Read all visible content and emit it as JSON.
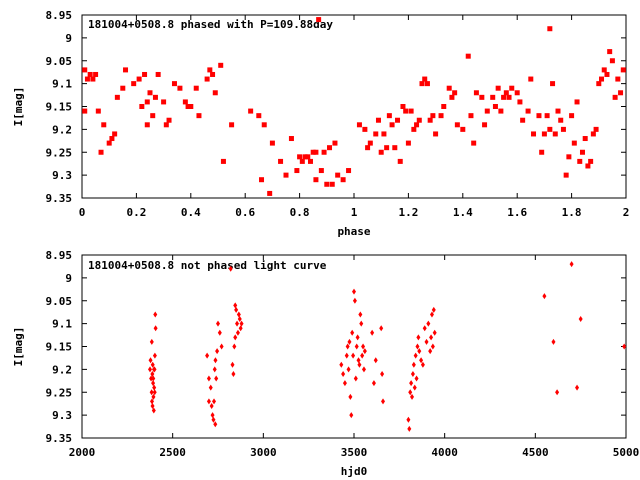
{
  "chart_data": [
    {
      "type": "scatter",
      "title": "181004+0508.8 phased with P=109.88day",
      "xlabel": "phase",
      "ylabel": "I[mag]",
      "xlim": [
        0,
        2
      ],
      "ylim": [
        9.35,
        8.95
      ],
      "y_inverted": true,
      "x_ticks": [
        "0",
        "0.2",
        "0.4",
        "0.6",
        "0.8",
        "1",
        "1.2",
        "1.4",
        "1.6",
        "1.8",
        "2"
      ],
      "y_ticks": [
        "8.95",
        "9",
        "9.05",
        "9.1",
        "9.15",
        "9.2",
        "9.25",
        "9.3",
        "9.35"
      ],
      "marker_color": "#ff0000",
      "series": [
        {
          "values": [
            [
              0.01,
              9.07
            ],
            [
              0.02,
              9.09
            ],
            [
              0.03,
              9.08
            ],
            [
              0.01,
              9.16
            ],
            [
              0.04,
              9.09
            ],
            [
              0.05,
              9.08
            ],
            [
              0.06,
              9.16
            ],
            [
              0.07,
              9.25
            ],
            [
              0.08,
              9.19
            ],
            [
              0.1,
              9.23
            ],
            [
              0.11,
              9.22
            ],
            [
              0.12,
              9.21
            ],
            [
              0.13,
              9.13
            ],
            [
              0.15,
              9.11
            ],
            [
              0.16,
              9.07
            ],
            [
              0.19,
              9.1
            ],
            [
              0.21,
              9.09
            ],
            [
              0.22,
              9.15
            ],
            [
              0.23,
              9.08
            ],
            [
              0.24,
              9.14
            ],
            [
              0.24,
              9.19
            ],
            [
              0.25,
              9.12
            ],
            [
              0.26,
              9.17
            ],
            [
              0.27,
              9.13
            ],
            [
              0.28,
              9.08
            ],
            [
              0.3,
              9.14
            ],
            [
              0.31,
              9.19
            ],
            [
              0.32,
              9.18
            ],
            [
              0.34,
              9.1
            ],
            [
              0.36,
              9.11
            ],
            [
              0.38,
              9.14
            ],
            [
              0.39,
              9.15
            ],
            [
              0.4,
              9.15
            ],
            [
              0.42,
              9.11
            ],
            [
              0.43,
              9.17
            ],
            [
              0.46,
              9.09
            ],
            [
              0.47,
              9.07
            ],
            [
              0.48,
              9.08
            ],
            [
              0.49,
              9.12
            ],
            [
              0.51,
              9.06
            ],
            [
              0.52,
              9.27
            ],
            [
              0.55,
              9.19
            ],
            [
              0.62,
              9.16
            ],
            [
              0.65,
              9.17
            ],
            [
              0.66,
              9.31
            ],
            [
              0.67,
              9.19
            ],
            [
              0.69,
              9.34
            ],
            [
              0.7,
              9.23
            ],
            [
              0.73,
              9.27
            ],
            [
              0.75,
              9.3
            ],
            [
              0.77,
              9.22
            ],
            [
              0.79,
              9.29
            ],
            [
              0.8,
              9.26
            ],
            [
              0.81,
              9.27
            ],
            [
              0.82,
              9.26
            ],
            [
              0.83,
              9.26
            ],
            [
              0.84,
              9.27
            ],
            [
              0.85,
              9.25
            ],
            [
              0.86,
              9.25
            ],
            [
              0.86,
              9.31
            ],
            [
              0.87,
              8.96
            ],
            [
              0.88,
              9.29
            ],
            [
              0.89,
              9.25
            ],
            [
              0.9,
              9.32
            ],
            [
              0.91,
              9.24
            ],
            [
              0.92,
              9.32
            ],
            [
              0.93,
              9.23
            ],
            [
              0.94,
              9.3
            ],
            [
              0.96,
              9.31
            ],
            [
              0.98,
              9.29
            ],
            [
              1.02,
              9.19
            ],
            [
              1.04,
              9.2
            ],
            [
              1.05,
              9.24
            ],
            [
              1.06,
              9.23
            ],
            [
              1.08,
              9.21
            ],
            [
              1.09,
              9.18
            ],
            [
              1.1,
              9.25
            ],
            [
              1.11,
              9.21
            ],
            [
              1.12,
              9.24
            ],
            [
              1.13,
              9.17
            ],
            [
              1.14,
              9.19
            ],
            [
              1.15,
              9.24
            ],
            [
              1.16,
              9.18
            ],
            [
              1.17,
              9.27
            ],
            [
              1.18,
              9.15
            ],
            [
              1.19,
              9.16
            ],
            [
              1.2,
              9.23
            ],
            [
              1.21,
              9.16
            ],
            [
              1.22,
              9.2
            ],
            [
              1.23,
              9.19
            ],
            [
              1.24,
              9.18
            ],
            [
              1.25,
              9.1
            ],
            [
              1.26,
              9.09
            ],
            [
              1.27,
              9.1
            ],
            [
              1.28,
              9.18
            ],
            [
              1.29,
              9.17
            ],
            [
              1.3,
              9.21
            ],
            [
              1.32,
              9.17
            ],
            [
              1.33,
              9.15
            ],
            [
              1.35,
              9.11
            ],
            [
              1.36,
              9.13
            ],
            [
              1.37,
              9.12
            ],
            [
              1.38,
              9.19
            ],
            [
              1.4,
              9.2
            ],
            [
              1.42,
              9.04
            ],
            [
              1.43,
              9.17
            ],
            [
              1.44,
              9.23
            ],
            [
              1.45,
              9.12
            ],
            [
              1.47,
              9.13
            ],
            [
              1.48,
              9.19
            ],
            [
              1.49,
              9.16
            ],
            [
              1.51,
              9.13
            ],
            [
              1.52,
              9.15
            ],
            [
              1.53,
              9.11
            ],
            [
              1.54,
              9.16
            ],
            [
              1.55,
              9.13
            ],
            [
              1.56,
              9.12
            ],
            [
              1.57,
              9.13
            ],
            [
              1.58,
              9.11
            ],
            [
              1.6,
              9.12
            ],
            [
              1.61,
              9.14
            ],
            [
              1.62,
              9.18
            ],
            [
              1.64,
              9.16
            ],
            [
              1.65,
              9.09
            ],
            [
              1.66,
              9.21
            ],
            [
              1.68,
              9.17
            ],
            [
              1.69,
              9.25
            ],
            [
              1.7,
              9.21
            ],
            [
              1.71,
              9.17
            ],
            [
              1.72,
              8.98
            ],
            [
              1.72,
              9.2
            ],
            [
              1.73,
              9.1
            ],
            [
              1.74,
              9.21
            ],
            [
              1.75,
              9.16
            ],
            [
              1.76,
              9.18
            ],
            [
              1.77,
              9.2
            ],
            [
              1.78,
              9.3
            ],
            [
              1.79,
              9.26
            ],
            [
              1.8,
              9.17
            ],
            [
              1.81,
              9.23
            ],
            [
              1.82,
              9.14
            ],
            [
              1.83,
              9.27
            ],
            [
              1.84,
              9.25
            ],
            [
              1.85,
              9.22
            ],
            [
              1.86,
              9.28
            ],
            [
              1.87,
              9.27
            ],
            [
              1.88,
              9.21
            ],
            [
              1.89,
              9.2
            ],
            [
              1.9,
              9.1
            ],
            [
              1.91,
              9.09
            ],
            [
              1.92,
              9.07
            ],
            [
              1.93,
              9.08
            ],
            [
              1.94,
              9.03
            ],
            [
              1.95,
              9.05
            ],
            [
              1.96,
              9.13
            ],
            [
              1.97,
              9.09
            ],
            [
              1.98,
              9.12
            ],
            [
              1.99,
              9.07
            ]
          ]
        }
      ]
    },
    {
      "type": "scatter",
      "title": "181004+0508.8 not phased light curve",
      "xlabel": "hjd0",
      "ylabel": "I[mag]",
      "xlim": [
        2000,
        5000
      ],
      "ylim": [
        9.35,
        8.95
      ],
      "y_inverted": true,
      "x_ticks": [
        "2000",
        "2500",
        "3000",
        "3500",
        "4000",
        "4500",
        "5000"
      ],
      "y_ticks": [
        "8.95",
        "9",
        "9.05",
        "9.1",
        "9.15",
        "9.2",
        "9.25",
        "9.3",
        "9.35"
      ],
      "marker_color": "#ff0000",
      "series": [
        {
          "values": [
            [
              2375,
              9.2
            ],
            [
              2378,
              9.18
            ],
            [
              2381,
              9.22
            ],
            [
              2384,
              9.25
            ],
            [
              2386,
              9.27
            ],
            [
              2388,
              9.21
            ],
            [
              2390,
              9.19
            ],
            [
              2392,
              9.23
            ],
            [
              2394,
              9.26
            ],
            [
              2396,
              9.29
            ],
            [
              2398,
              9.24
            ],
            [
              2400,
              9.2
            ],
            [
              2402,
              9.17
            ],
            [
              2404,
              9.08
            ],
            [
              2406,
              9.11
            ],
            [
              2385,
              9.14
            ],
            [
              2389,
              9.28
            ],
            [
              2393,
              9.22
            ],
            [
              2397,
              9.2
            ],
            [
              2401,
              9.25
            ],
            [
              2690,
              9.17
            ],
            [
              2700,
              9.22
            ],
            [
              2710,
              9.24
            ],
            [
              2715,
              9.28
            ],
            [
              2720,
              9.3
            ],
            [
              2725,
              9.31
            ],
            [
              2728,
              9.27
            ],
            [
              2732,
              9.2
            ],
            [
              2736,
              9.18
            ],
            [
              2740,
              9.22
            ],
            [
              2745,
              9.16
            ],
            [
              2750,
              9.1
            ],
            [
              2760,
              9.12
            ],
            [
              2770,
              9.15
            ],
            [
              2700,
              9.27
            ],
            [
              2735,
              9.32
            ],
            [
              2820,
              8.98
            ],
            [
              2830,
              9.19
            ],
            [
              2835,
              9.21
            ],
            [
              2840,
              9.15
            ],
            [
              2845,
              9.13
            ],
            [
              2850,
              9.07
            ],
            [
              2855,
              9.1
            ],
            [
              2860,
              9.12
            ],
            [
              2865,
              9.08
            ],
            [
              2870,
              9.09
            ],
            [
              2875,
              9.11
            ],
            [
              2880,
              9.1
            ],
            [
              2845,
              9.06
            ],
            [
              3430,
              9.19
            ],
            [
              3440,
              9.21
            ],
            [
              3450,
              9.23
            ],
            [
              3460,
              9.17
            ],
            [
              3465,
              9.15
            ],
            [
              3470,
              9.2
            ],
            [
              3475,
              9.14
            ],
            [
              3480,
              9.26
            ],
            [
              3485,
              9.3
            ],
            [
              3490,
              9.12
            ],
            [
              3495,
              9.17
            ],
            [
              3500,
              9.03
            ],
            [
              3505,
              9.05
            ],
            [
              3510,
              9.22
            ],
            [
              3515,
              9.15
            ],
            [
              3520,
              9.13
            ],
            [
              3525,
              9.18
            ],
            [
              3530,
              9.19
            ],
            [
              3535,
              9.08
            ],
            [
              3540,
              9.1
            ],
            [
              3545,
              9.17
            ],
            [
              3550,
              9.15
            ],
            [
              3555,
              9.2
            ],
            [
              3560,
              9.16
            ],
            [
              3600,
              9.12
            ],
            [
              3610,
              9.23
            ],
            [
              3620,
              9.18
            ],
            [
              3650,
              9.11
            ],
            [
              3655,
              9.21
            ],
            [
              3660,
              9.27
            ],
            [
              3800,
              9.31
            ],
            [
              3805,
              9.33
            ],
            [
              3810,
              9.25
            ],
            [
              3815,
              9.23
            ],
            [
              3820,
              9.26
            ],
            [
              3825,
              9.21
            ],
            [
              3830,
              9.19
            ],
            [
              3835,
              9.24
            ],
            [
              3840,
              9.17
            ],
            [
              3845,
              9.22
            ],
            [
              3850,
              9.15
            ],
            [
              3855,
              9.13
            ],
            [
              3860,
              9.16
            ],
            [
              3870,
              9.18
            ],
            [
              3880,
              9.19
            ],
            [
              3890,
              9.11
            ],
            [
              3900,
              9.14
            ],
            [
              3910,
              9.1
            ],
            [
              3920,
              9.16
            ],
            [
              3925,
              9.13
            ],
            [
              3930,
              9.08
            ],
            [
              3935,
              9.15
            ],
            [
              3940,
              9.07
            ],
            [
              3945,
              9.12
            ],
            [
              4550,
              9.04
            ],
            [
              4600,
              9.14
            ],
            [
              4620,
              9.25
            ],
            [
              4700,
              8.97
            ],
            [
              4730,
              9.24
            ],
            [
              4750,
              9.09
            ],
            [
              4990,
              9.15
            ]
          ]
        }
      ]
    }
  ]
}
